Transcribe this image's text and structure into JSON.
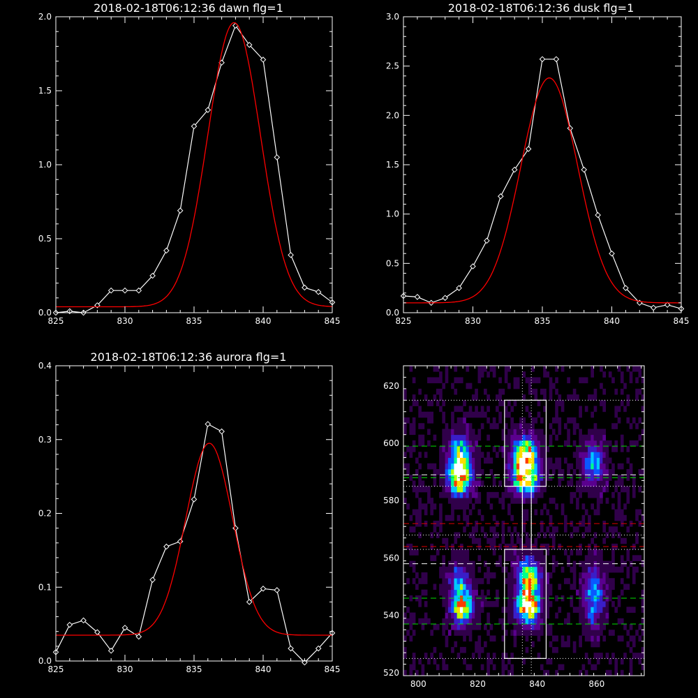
{
  "chart_data": [
    {
      "type": "line",
      "title": "2018-02-18T06:12:36 dawn flg=1",
      "xlim": [
        825,
        845
      ],
      "ylim": [
        0,
        2.0
      ],
      "xticks": [
        825,
        830,
        835,
        840,
        845
      ],
      "yticks": [
        0.0,
        0.5,
        1.0,
        1.5,
        2.0
      ],
      "xtick_labels": [
        "825",
        "830",
        "835",
        "840",
        "845"
      ],
      "ytick_labels": [
        "0.0",
        "0.5",
        "1.0",
        "1.5",
        "2.0"
      ],
      "series": [
        {
          "style": "white-line-diamonds",
          "color": "#ffffff",
          "x": [
            825,
            826,
            827,
            828,
            829,
            830,
            831,
            832,
            833,
            834,
            835,
            836,
            837,
            838,
            839,
            840,
            841,
            842,
            843,
            844,
            845
          ],
          "y": [
            0.0,
            0.01,
            0.0,
            0.05,
            0.15,
            0.15,
            0.15,
            0.25,
            0.42,
            0.69,
            1.26,
            1.37,
            1.69,
            1.94,
            1.81,
            1.71,
            1.05,
            0.39,
            0.17,
            0.14,
            0.07
          ]
        },
        {
          "style": "red-gaussian-fit",
          "color": "#ff0000",
          "model": "gaussian",
          "baseline": 0.04,
          "amplitude": 1.92,
          "center": 837.9,
          "sigma": 1.9
        }
      ]
    },
    {
      "type": "line",
      "title": "2018-02-18T06:12:36 dusk flg=1",
      "xlim": [
        825,
        845
      ],
      "ylim": [
        0,
        3.0
      ],
      "xticks": [
        825,
        830,
        835,
        840,
        845
      ],
      "yticks": [
        0.0,
        0.5,
        1.0,
        1.5,
        2.0,
        2.5,
        3.0
      ],
      "xtick_labels": [
        "825",
        "830",
        "835",
        "840",
        "845"
      ],
      "ytick_labels": [
        "0.0",
        "0.5",
        "1.0",
        "1.5",
        "2.0",
        "2.5",
        "3.0"
      ],
      "series": [
        {
          "style": "white-line-diamonds",
          "color": "#ffffff",
          "x": [
            825,
            826,
            827,
            828,
            829,
            830,
            831,
            832,
            833,
            834,
            835,
            836,
            837,
            838,
            839,
            840,
            841,
            842,
            843,
            844,
            845
          ],
          "y": [
            0.17,
            0.16,
            0.1,
            0.15,
            0.25,
            0.47,
            0.73,
            1.18,
            1.45,
            1.66,
            2.57,
            2.57,
            1.87,
            1.45,
            0.99,
            0.6,
            0.25,
            0.1,
            0.05,
            0.08,
            0.04
          ]
        },
        {
          "style": "red-gaussian-fit",
          "color": "#ff0000",
          "model": "gaussian",
          "baseline": 0.1,
          "amplitude": 2.28,
          "center": 835.5,
          "sigma": 2.05
        }
      ]
    },
    {
      "type": "line",
      "title": "2018-02-18T06:12:36 aurora flg=1",
      "xlim": [
        825,
        845
      ],
      "ylim": [
        0,
        0.4
      ],
      "xticks": [
        825,
        830,
        835,
        840,
        845
      ],
      "yticks": [
        0.0,
        0.1,
        0.2,
        0.3,
        0.4
      ],
      "xtick_labels": [
        "825",
        "830",
        "835",
        "840",
        "845"
      ],
      "ytick_labels": [
        "0.0",
        "0.1",
        "0.2",
        "0.3",
        "0.4"
      ],
      "series": [
        {
          "style": "white-line-diamonds",
          "color": "#ffffff",
          "x": [
            825,
            826,
            827,
            828,
            829,
            830,
            831,
            832,
            833,
            834,
            835,
            836,
            837,
            838,
            839,
            840,
            841,
            842,
            843,
            844,
            845
          ],
          "y": [
            0.012,
            0.049,
            0.055,
            0.039,
            0.014,
            0.045,
            0.033,
            0.11,
            0.155,
            0.162,
            0.219,
            0.321,
            0.311,
            0.18,
            0.08,
            0.098,
            0.096,
            0.017,
            -0.002,
            0.017,
            0.038
          ]
        },
        {
          "style": "red-gaussian-fit",
          "color": "#ff0000",
          "model": "gaussian",
          "baseline": 0.035,
          "amplitude": 0.26,
          "center": 836.1,
          "sigma": 1.7
        }
      ]
    },
    {
      "type": "heatmap",
      "title": "",
      "xlim": [
        795,
        876
      ],
      "ylim": [
        519,
        627
      ],
      "xticks": [
        800,
        820,
        840,
        860
      ],
      "yticks": [
        520,
        540,
        560,
        580,
        600,
        620
      ],
      "xtick_labels": [
        "800",
        "820",
        "840",
        "860"
      ],
      "ytick_labels": [
        "520",
        "540",
        "560",
        "580",
        "600",
        "620"
      ],
      "colormap": [
        "#000000",
        "#30004a",
        "#5a008e",
        "#3a1ec8",
        "#0a58ff",
        "#00c8ff",
        "#00ff8c",
        "#b4ff00",
        "#ffdc00",
        "#ff3c00",
        "#ffffff"
      ],
      "blobs": [
        {
          "x": 814,
          "y": 594,
          "sx": 2.6,
          "sy": 5.5,
          "amp": 0.75
        },
        {
          "x": 814,
          "y": 587,
          "sx": 2.6,
          "sy": 3.5,
          "amp": 0.6
        },
        {
          "x": 836,
          "y": 595,
          "sx": 2.8,
          "sy": 4.5,
          "amp": 1.0
        },
        {
          "x": 836,
          "y": 587,
          "sx": 2.8,
          "sy": 3.5,
          "amp": 0.75
        },
        {
          "x": 859,
          "y": 593,
          "sx": 2.4,
          "sy": 5.0,
          "amp": 0.5
        },
        {
          "x": 814,
          "y": 550,
          "sx": 2.4,
          "sy": 5.5,
          "amp": 0.45
        },
        {
          "x": 815,
          "y": 542,
          "sx": 2.4,
          "sy": 3.5,
          "amp": 0.7
        },
        {
          "x": 837,
          "y": 553,
          "sx": 2.6,
          "sy": 5.0,
          "amp": 0.7
        },
        {
          "x": 837,
          "y": 543,
          "sx": 2.6,
          "sy": 4.0,
          "amp": 0.9
        },
        {
          "x": 859,
          "y": 547,
          "sx": 2.4,
          "sy": 7.0,
          "amp": 0.45
        }
      ],
      "boxes": [
        {
          "x0": 829,
          "x1": 843,
          "y0": 585,
          "y1": 615
        },
        {
          "x0": 829,
          "x1": 843,
          "y0": 525,
          "y1": 563
        },
        {
          "x0": 835,
          "x1": 838,
          "y0": 563,
          "y1": 585
        }
      ],
      "hlines": [
        {
          "y": 615,
          "color": "#ffffff",
          "style": "dotted"
        },
        {
          "y": 599,
          "color": "#00e000",
          "style": "dashed"
        },
        {
          "y": 589,
          "color": "#ffffff",
          "style": "dashed"
        },
        {
          "y": 588,
          "color": "#00e000",
          "style": "dashed"
        },
        {
          "y": 585,
          "color": "#ffffff",
          "style": "dotted"
        },
        {
          "y": 572,
          "color": "#e00000",
          "style": "dashed"
        },
        {
          "y": 568,
          "color": "#ffffff",
          "style": "dotted"
        },
        {
          "y": 564,
          "color": "#e00000",
          "style": "dashed"
        },
        {
          "y": 563,
          "color": "#ffffff",
          "style": "dotted"
        },
        {
          "y": 558,
          "color": "#ffffff",
          "style": "dashed"
        },
        {
          "y": 546,
          "color": "#00e000",
          "style": "dashed"
        },
        {
          "y": 537,
          "color": "#00e000",
          "style": "dashed"
        },
        {
          "y": 525,
          "color": "#ffffff",
          "style": "dotted"
        }
      ],
      "vlines": [
        {
          "x": 835,
          "color": "#ffffff",
          "style": "dotted"
        },
        {
          "x": 838,
          "color": "#ffffff",
          "style": "dotted"
        }
      ]
    }
  ]
}
